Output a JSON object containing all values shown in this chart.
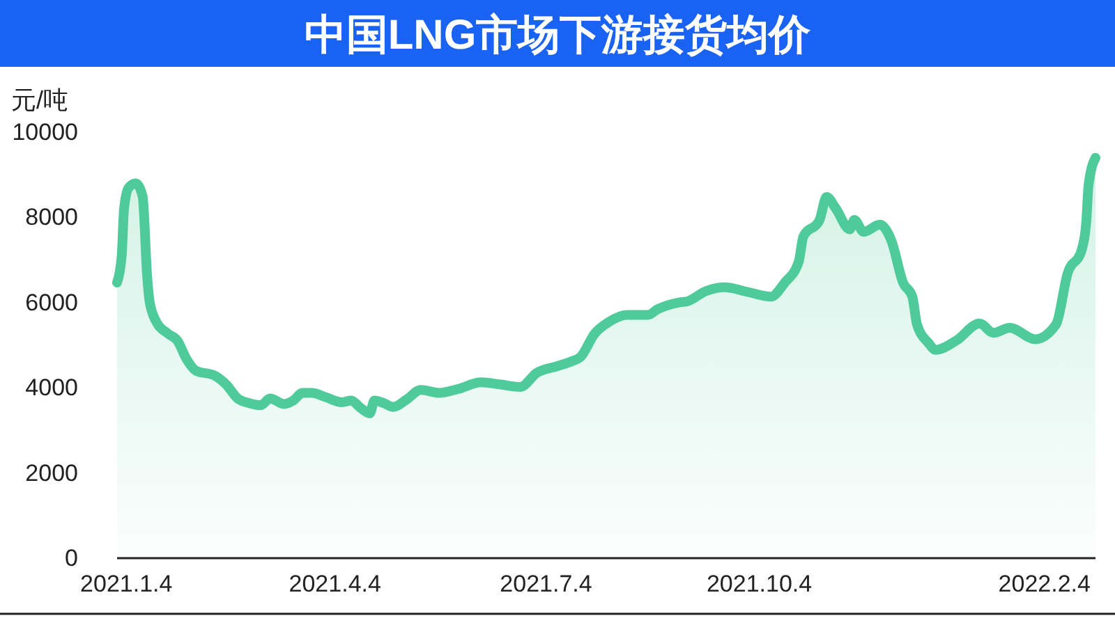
{
  "chart_data": {
    "type": "area",
    "title": "中国LNG市场下游接货均价",
    "ylabel": "元/吨",
    "xlim": [
      "2020-12-31",
      "2022-02-26"
    ],
    "xticks": [
      {
        "value": "2021-01-04",
        "label": "2021.1.4"
      },
      {
        "value": "2021-04-04",
        "label": "2021.4.4"
      },
      {
        "value": "2021-07-04",
        "label": "2021.7.4"
      },
      {
        "value": "2021-10-04",
        "label": "2021.10.4"
      },
      {
        "value": "2022-02-04",
        "label": "2022.2.4"
      }
    ],
    "ylim": [
      0,
      10000
    ],
    "yticks": [
      0,
      2000,
      4000,
      6000,
      8000,
      10000
    ],
    "grid": false,
    "marker": "none",
    "x": [
      "2020-12-31",
      "2021-01-02",
      "2021-01-03",
      "2021-01-05",
      "2021-01-08",
      "2021-01-11",
      "2021-01-13",
      "2021-01-14",
      "2021-01-17",
      "2021-01-22",
      "2021-01-26",
      "2021-01-30",
      "2021-02-03",
      "2021-02-11",
      "2021-02-16",
      "2021-02-21",
      "2021-02-26",
      "2021-03-03",
      "2021-03-07",
      "2021-03-13",
      "2021-03-17",
      "2021-03-21",
      "2021-03-25",
      "2021-03-31",
      "2021-04-07",
      "2021-04-11",
      "2021-04-15",
      "2021-04-19",
      "2021-04-21",
      "2021-04-25",
      "2021-04-29",
      "2021-05-05",
      "2021-05-11",
      "2021-05-19",
      "2021-05-27",
      "2021-06-06",
      "2021-06-14",
      "2021-06-23",
      "2021-06-30",
      "2021-07-09",
      "2021-07-15",
      "2021-07-19",
      "2021-07-25",
      "2021-07-31",
      "2021-08-08",
      "2021-08-17",
      "2021-08-21",
      "2021-08-30",
      "2021-09-03",
      "2021-09-11",
      "2021-09-19",
      "2021-09-29",
      "2021-10-09",
      "2021-10-15",
      "2021-10-21",
      "2021-10-23",
      "2021-10-30",
      "2021-11-02",
      "2021-11-06",
      "2021-11-12",
      "2021-11-14",
      "2021-11-18",
      "2021-11-25",
      "2021-11-30",
      "2021-12-05",
      "2021-12-09",
      "2021-12-11",
      "2021-12-16",
      "2021-12-19",
      "2021-12-28",
      "2022-01-07",
      "2022-01-13",
      "2022-01-20",
      "2022-01-31",
      "2022-02-09",
      "2022-02-14",
      "2022-02-20",
      "2022-02-22",
      "2022-02-23",
      "2022-02-26"
    ],
    "series": [
      {
        "color": "#4fcb9b",
        "values": [
          6470,
          7100,
          8200,
          8700,
          8800,
          8500,
          6600,
          6030,
          5540,
          5270,
          5110,
          4670,
          4400,
          4290,
          4080,
          3750,
          3640,
          3590,
          3750,
          3620,
          3700,
          3880,
          3880,
          3780,
          3660,
          3700,
          3530,
          3400,
          3700,
          3640,
          3550,
          3730,
          3950,
          3880,
          3970,
          4130,
          4080,
          4020,
          4350,
          4510,
          4620,
          4730,
          5270,
          5540,
          5710,
          5710,
          5840,
          6000,
          6030,
          6270,
          6360,
          6250,
          6140,
          6470,
          6960,
          7550,
          7940,
          8480,
          8210,
          7720,
          7940,
          7660,
          7830,
          7450,
          6470,
          6140,
          5490,
          5050,
          4890,
          5110,
          5510,
          5290,
          5410,
          5140,
          5490,
          6690,
          7230,
          7880,
          8750,
          9400
        ]
      }
    ]
  }
}
